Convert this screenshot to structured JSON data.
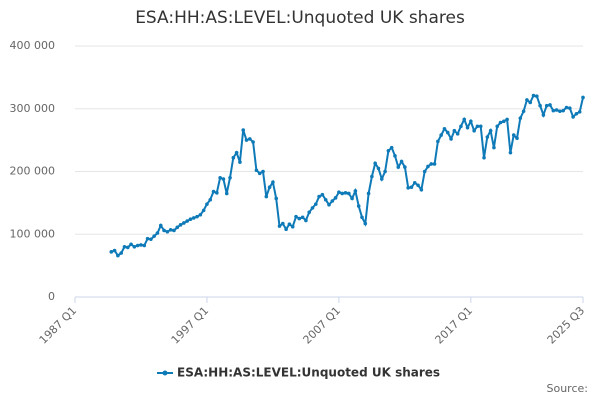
{
  "chart_data": {
    "type": "line",
    "title": "ESA:HH:AS:LEVEL:Unquoted UK shares",
    "categories": [
      "1987 Q1",
      null,
      null,
      null,
      null,
      null,
      null,
      null,
      null,
      null,
      null,
      null,
      null,
      null,
      null,
      null,
      null,
      null,
      null,
      null,
      null,
      null,
      null,
      null,
      null,
      null,
      null,
      null,
      null,
      null,
      null,
      null,
      null,
      null,
      null,
      null,
      null,
      null,
      null,
      null,
      "1997 Q1",
      null,
      null,
      null,
      null,
      null,
      null,
      null,
      null,
      null,
      null,
      null,
      null,
      null,
      null,
      null,
      null,
      null,
      null,
      null,
      null,
      null,
      null,
      null,
      null,
      null,
      null,
      null,
      null,
      null,
      null,
      null,
      null,
      null,
      null,
      null,
      null,
      null,
      null,
      null,
      "2007 Q1",
      null,
      null,
      null,
      null,
      null,
      null,
      null,
      null,
      null,
      null,
      null,
      null,
      null,
      null,
      null,
      null,
      null,
      null,
      null,
      null,
      null,
      null,
      null,
      null,
      null,
      null,
      null,
      null,
      null,
      null,
      null,
      null,
      null,
      null,
      null,
      null,
      null,
      null,
      null,
      "2017 Q1",
      null,
      null,
      null,
      null,
      null,
      null,
      null,
      null,
      null,
      null,
      null,
      null,
      null,
      null,
      null,
      null,
      null,
      null,
      null,
      null,
      null,
      null,
      null,
      null,
      null,
      null,
      null,
      null,
      null,
      null,
      null,
      null,
      null,
      "2025 Q3"
    ],
    "series": [
      {
        "name": "ESA:HH:AS:LEVEL:Unquoted UK shares",
        "color": "#0f7ab8",
        "values": [
          null,
          null,
          null,
          null,
          null,
          null,
          null,
          null,
          null,
          null,
          null,
          72000,
          74000,
          66000,
          70000,
          80000,
          79000,
          84000,
          80000,
          82000,
          83000,
          82000,
          93000,
          92000,
          97000,
          102000,
          114000,
          106000,
          104000,
          107000,
          106000,
          111000,
          115000,
          118000,
          121000,
          124000,
          126000,
          128000,
          131000,
          138000,
          148000,
          155000,
          168000,
          166000,
          190000,
          188000,
          165000,
          190000,
          222000,
          230000,
          215000,
          266000,
          250000,
          252000,
          247000,
          202000,
          197000,
          200000,
          160000,
          175000,
          183000,
          157000,
          113000,
          117000,
          108000,
          116000,
          112000,
          128000,
          125000,
          127000,
          122000,
          135000,
          142000,
          148000,
          160000,
          163000,
          155000,
          147000,
          153000,
          158000,
          167000,
          165000,
          166000,
          165000,
          157000,
          169000,
          145000,
          127000,
          117000,
          165000,
          192000,
          213000,
          205000,
          188000,
          200000,
          233000,
          238000,
          225000,
          207000,
          216000,
          207000,
          174000,
          175000,
          182000,
          178000,
          171000,
          200000,
          208000,
          212000,
          212000,
          248000,
          258000,
          268000,
          262000,
          252000,
          265000,
          260000,
          272000,
          283000,
          270000,
          280000,
          265000,
          272000,
          272000,
          222000,
          255000,
          265000,
          238000,
          272000,
          278000,
          280000,
          283000,
          230000,
          258000,
          253000,
          285000,
          296000,
          314000,
          310000,
          321000,
          320000,
          305000,
          290000,
          305000,
          306000,
          297000,
          298000,
          296000,
          297000,
          302000,
          301000,
          287000,
          292000,
          295000,
          318000
        ]
      }
    ],
    "ylim": [
      0,
      400000
    ],
    "yticks": [
      0,
      {
        "value": 100000,
        "label": "100 000"
      },
      {
        "value": 200000,
        "label": "200 000"
      },
      {
        "value": 300000,
        "label": "300 000"
      },
      {
        "value": 400000,
        "label": "400 000"
      }
    ],
    "grid": true,
    "source": "Source:"
  }
}
